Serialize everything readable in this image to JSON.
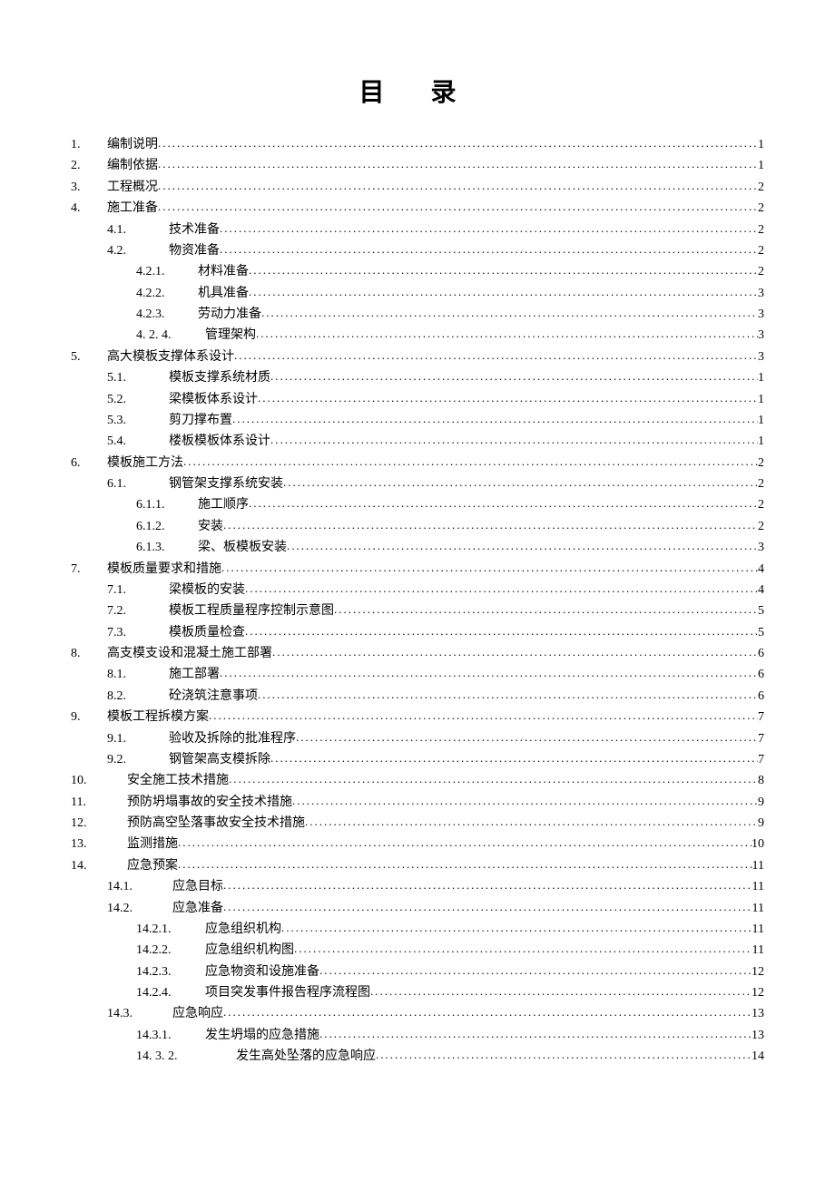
{
  "title": "目 录",
  "text_color": "#000000",
  "background_color": "#ffffff",
  "font_family": "SimSun",
  "title_fontsize": 28,
  "body_fontsize": 14,
  "entries": [
    {
      "num": "1.",
      "label": "编制说明",
      "page": "1",
      "level": "lvl1"
    },
    {
      "num": "2.",
      "label": "编制依据",
      "page": "1",
      "level": "lvl1"
    },
    {
      "num": "3.",
      "label": "工程概况",
      "page": "2",
      "level": "lvl1"
    },
    {
      "num": "4.",
      "label": "施工准备",
      "page": "2",
      "level": "lvl1"
    },
    {
      "num": "4.1.",
      "label": "技术准备",
      "page": "2",
      "level": "lvl2"
    },
    {
      "num": "4.2.",
      "label": "物资准备",
      "page": "2",
      "level": "lvl2"
    },
    {
      "num": "4.2.1.",
      "label": "材料准备",
      "page": "2",
      "level": "lvl3"
    },
    {
      "num": "4.2.2.",
      "label": "机具准备",
      "page": "3",
      "level": "lvl3"
    },
    {
      "num": "4.2.3.",
      "label": "劳动力准备",
      "page": "3",
      "level": "lvl3"
    },
    {
      "num": "4. 2. 4.",
      "label": "管理架构",
      "page": "3",
      "level": "lvl3b"
    },
    {
      "num": "5.",
      "label": "高大模板支撑体系设计",
      "page": "3",
      "level": "lvl1"
    },
    {
      "num": "5.1.",
      "label": "模板支撑系统材质",
      "page": "1",
      "level": "lvl2"
    },
    {
      "num": "5.2.",
      "label": "梁模板体系设计",
      "page": "1",
      "level": "lvl2"
    },
    {
      "num": "5.3.",
      "label": "剪刀撑布置",
      "page": "1",
      "level": "lvl2"
    },
    {
      "num": "5.4.",
      "label": "楼板模板体系设计",
      "page": "1",
      "level": "lvl2"
    },
    {
      "num": "6.",
      "label": "模板施工方法",
      "page": "2",
      "level": "lvl1"
    },
    {
      "num": "6.1.",
      "label": "钢管架支撑系统安装",
      "page": "2",
      "level": "lvl2"
    },
    {
      "num": "6.1.1.",
      "label": "施工顺序",
      "page": "2",
      "level": "lvl3"
    },
    {
      "num": "6.1.2.",
      "label": "安装",
      "page": "2",
      "level": "lvl3"
    },
    {
      "num": "6.1.3.",
      "label": "梁、板模板安装",
      "page": "3",
      "level": "lvl3"
    },
    {
      "num": "7.",
      "label": "模板质量要求和措施",
      "page": "4",
      "level": "lvl1"
    },
    {
      "num": "7.1.",
      "label": "梁模板的安装",
      "page": "4",
      "level": "lvl2"
    },
    {
      "num": "7.2.",
      "label": "模板工程质量程序控制示意图",
      "page": "5",
      "level": "lvl2"
    },
    {
      "num": "7.3.",
      "label": "模板质量检查",
      "page": "5",
      "level": "lvl2"
    },
    {
      "num": "8.",
      "label": "高支模支设和混凝土施工部署",
      "page": "6",
      "level": "lvl1"
    },
    {
      "num": "8.1.",
      "label": "施工部署",
      "page": "6",
      "level": "lvl2"
    },
    {
      "num": "8.2.",
      "label": "砼浇筑注意事项",
      "page": "6",
      "level": "lvl2"
    },
    {
      "num": "9.",
      "label": "模板工程拆模方案",
      "page": "7",
      "level": "lvl1"
    },
    {
      "num": "9.1.",
      "label": "验收及拆除的批准程序",
      "page": "7",
      "level": "lvl2"
    },
    {
      "num": "9.2.",
      "label": "钢管架高支模拆除",
      "page": "7",
      "level": "lvl2"
    },
    {
      "num": "10.",
      "label": "安全施工技术措施",
      "page": "8",
      "level": "lvl1b"
    },
    {
      "num": "11.",
      "label": "预防坍塌事故的安全技术措施",
      "page": "9",
      "level": "lvl1b"
    },
    {
      "num": "12.",
      "label": "预防高空坠落事故安全技术措施",
      "page": "9",
      "level": "lvl1b"
    },
    {
      "num": "13.",
      "label": "监测措施",
      "page": "10",
      "level": "lvl1b"
    },
    {
      "num": "14.",
      "label": "应急预案",
      "page": "11",
      "level": "lvl1b"
    },
    {
      "num": "14.1.",
      "label": "应急目标",
      "page": "11",
      "level": "lvl2b"
    },
    {
      "num": "14.2.",
      "label": "应急准备",
      "page": "11",
      "level": "lvl2b"
    },
    {
      "num": "14.2.1.",
      "label": "应急组织机构",
      "page": "11",
      "level": "lvl3b"
    },
    {
      "num": "14.2.2.",
      "label": "应急组织机构图",
      "page": "11",
      "level": "lvl3b"
    },
    {
      "num": "14.2.3.",
      "label": "应急物资和设施准备",
      "page": "12",
      "level": "lvl3b"
    },
    {
      "num": "14.2.4.",
      "label": "项目突发事件报告程序流程图",
      "page": "12",
      "level": "lvl3b"
    },
    {
      "num": "14.3.",
      "label": "应急响应",
      "page": "13",
      "level": "lvl2b"
    },
    {
      "num": "14.3.1.",
      "label": "发生坍塌的应急措施",
      "page": "13",
      "level": "lvl3b"
    },
    {
      "num": "14. 3. 2.",
      "label": "发生高处坠落的应急响应",
      "page": "14",
      "level": "lvl3c"
    }
  ]
}
